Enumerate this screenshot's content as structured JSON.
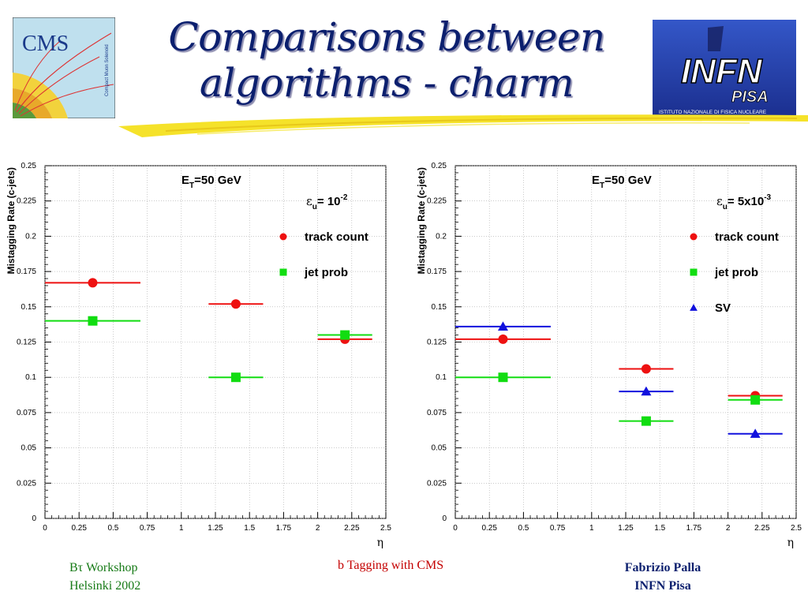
{
  "title": {
    "line1": "Comparisons between",
    "line2": "algorithms - charm"
  },
  "logos": {
    "cms": {
      "text": "CMS",
      "subtext": "Compact Muon Solenoid"
    },
    "infn": {
      "text": "INFN",
      "city": "PISA",
      "subtext": "ISTITUTO NAZIONALE DI FISICA NUCLEARE"
    }
  },
  "footer": {
    "workshop_line1": "Bτ Workshop",
    "workshop_line2": "Helsinki 2002",
    "talk_title": "b Tagging with CMS",
    "author": "Fabrizio Palla",
    "institute": "INFN Pisa"
  },
  "colors": {
    "track_count": "#ee1111",
    "jet_prob": "#11dd11",
    "sv": "#1111dd",
    "title": "#0b1f6e"
  },
  "chart_data": [
    {
      "type": "scatter",
      "title": "E_T=50 GeV",
      "title_main": "E",
      "title_sub": "T",
      "title_rest": "=50 GeV",
      "efficiency_symbol": "ε",
      "efficiency_sub": "u",
      "efficiency_text": "= 10",
      "efficiency_exp": "-2",
      "xlabel": "η",
      "ylabel": "Mistagging Rate (c-jets)",
      "xlim": [
        0,
        2.5
      ],
      "ylim": [
        0,
        0.25
      ],
      "xticks": [
        "0",
        "0.25",
        "0.5",
        "0.75",
        "1",
        "1.25",
        "1.5",
        "1.75",
        "2",
        "2.25",
        "2.5"
      ],
      "yticks": [
        "0",
        "0.025",
        "0.05",
        "0.075",
        "0.1",
        "0.125",
        "0.15",
        "0.175",
        "0.2",
        "0.225",
        "0.25"
      ],
      "series": [
        {
          "name": "track count",
          "marker": "circle",
          "color": "#ee1111",
          "x": [
            0.35,
            1.4,
            2.2
          ],
          "y": [
            0.167,
            0.152,
            0.127
          ],
          "xerr_low": [
            0.35,
            0.2,
            0.2
          ],
          "xerr_high": [
            0.35,
            0.2,
            0.2
          ]
        },
        {
          "name": "jet prob",
          "marker": "square",
          "color": "#11dd11",
          "x": [
            0.35,
            1.4,
            2.2
          ],
          "y": [
            0.14,
            0.1,
            0.13
          ],
          "xerr_low": [
            0.35,
            0.2,
            0.2
          ],
          "xerr_high": [
            0.35,
            0.2,
            0.2
          ]
        }
      ]
    },
    {
      "type": "scatter",
      "title": "E_T=50 GeV",
      "title_main": "E",
      "title_sub": "T",
      "title_rest": "=50 GeV",
      "efficiency_symbol": "ε",
      "efficiency_sub": "u",
      "efficiency_text": "= 5x10",
      "efficiency_exp": "-3",
      "xlabel": "η",
      "ylabel": "Mistagging Rate (c-jets)",
      "xlim": [
        0,
        2.5
      ],
      "ylim": [
        0,
        0.25
      ],
      "xticks": [
        "0",
        "0.25",
        "0.5",
        "0.75",
        "1",
        "1.25",
        "1.5",
        "1.75",
        "2",
        "2.25",
        "2.5"
      ],
      "yticks": [
        "0",
        "0.025",
        "0.05",
        "0.075",
        "0.1",
        "0.125",
        "0.15",
        "0.175",
        "0.2",
        "0.225",
        "0.25"
      ],
      "series": [
        {
          "name": "track count",
          "marker": "circle",
          "color": "#ee1111",
          "x": [
            0.35,
            1.4,
            2.2
          ],
          "y": [
            0.127,
            0.106,
            0.087
          ],
          "xerr_low": [
            0.35,
            0.2,
            0.2
          ],
          "xerr_high": [
            0.35,
            0.2,
            0.2
          ]
        },
        {
          "name": "jet prob",
          "marker": "square",
          "color": "#11dd11",
          "x": [
            0.35,
            1.4,
            2.2
          ],
          "y": [
            0.1,
            0.069,
            0.084
          ],
          "xerr_low": [
            0.35,
            0.2,
            0.2
          ],
          "xerr_high": [
            0.35,
            0.2,
            0.2
          ]
        },
        {
          "name": "SV",
          "marker": "triangle",
          "color": "#1111dd",
          "x": [
            0.35,
            1.4,
            2.2
          ],
          "y": [
            0.136,
            0.09,
            0.06
          ],
          "xerr_low": [
            0.35,
            0.2,
            0.2
          ],
          "xerr_high": [
            0.35,
            0.2,
            0.2
          ]
        }
      ]
    }
  ]
}
